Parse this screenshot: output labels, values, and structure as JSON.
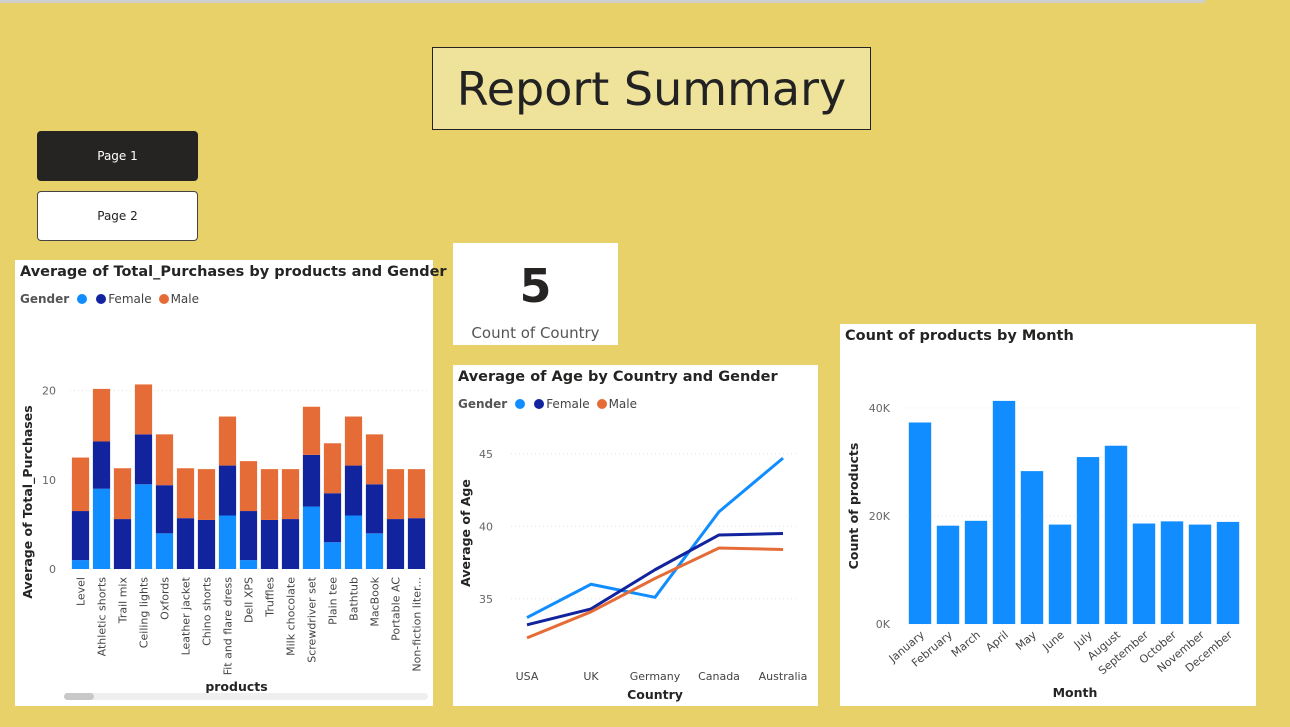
{
  "report_title": "Report Summary",
  "nav": {
    "page1": "Page 1",
    "page2": "Page 2"
  },
  "kpi": {
    "value": "5",
    "label": "Count of Country"
  },
  "colors": {
    "series_blank": "#118dff",
    "female": "#12239e",
    "male": "#e66c37",
    "bar": "#118dff"
  },
  "chart_data": [
    {
      "id": "purchases",
      "type": "bar",
      "stacked": true,
      "title": "Average of Total_Purchases by products and Gender",
      "legend_title": "Gender",
      "legend_position": "top-left",
      "xlabel": "products",
      "ylabel": "Average of Total_Purchases",
      "ylim": [
        0,
        24
      ],
      "yticks": [
        0,
        10,
        20
      ],
      "categories": [
        "Level",
        "Athletic shorts",
        "Trail mix",
        "Ceiling lights",
        "Oxfords",
        "Leather jacket",
        "Chino shorts",
        "Fit and flare dress",
        "Dell XPS",
        "Truffles",
        "Milk chocolate",
        "Screwdriver set",
        "Plain tee",
        "Bathtub",
        "MacBook",
        "Portable AC",
        "Non-fiction liter..."
      ],
      "series": [
        {
          "name": "",
          "values": [
            1.0,
            9.0,
            0,
            9.5,
            4.0,
            0,
            0,
            6.0,
            1.0,
            0,
            0,
            7.0,
            3.0,
            6.0,
            4.0,
            0,
            0
          ]
        },
        {
          "name": "Female",
          "values": [
            5.5,
            5.3,
            5.6,
            5.6,
            5.4,
            5.7,
            5.5,
            5.6,
            5.5,
            5.5,
            5.6,
            5.8,
            5.5,
            5.6,
            5.5,
            5.6,
            5.7
          ]
        },
        {
          "name": "Male",
          "values": [
            6.0,
            5.9,
            5.7,
            5.6,
            5.7,
            5.6,
            5.7,
            5.5,
            5.6,
            5.7,
            5.6,
            5.4,
            5.6,
            5.5,
            5.6,
            5.6,
            5.5
          ]
        }
      ]
    },
    {
      "id": "age",
      "type": "line",
      "title": "Average of Age by Country and Gender",
      "legend_title": "Gender",
      "legend_position": "top-left",
      "xlabel": "Country",
      "ylabel": "Average of Age",
      "ylim": [
        32.5,
        46.5
      ],
      "yticks": [
        35,
        40,
        45
      ],
      "categories": [
        "USA",
        "UK",
        "Germany",
        "Canada",
        "Australia"
      ],
      "series": [
        {
          "name": "",
          "values": [
            33.7,
            36.0,
            35.1,
            41.0,
            44.7
          ]
        },
        {
          "name": "Female",
          "values": [
            33.2,
            34.3,
            37.0,
            39.4,
            39.5
          ]
        },
        {
          "name": "Male",
          "values": [
            32.3,
            34.1,
            36.4,
            38.5,
            38.4
          ]
        }
      ]
    },
    {
      "id": "month",
      "type": "bar",
      "title": "Count of products by Month",
      "xlabel": "Month",
      "ylabel": "Count of products",
      "ylim": [
        0,
        43500
      ],
      "yticks": [
        0,
        20000,
        40000
      ],
      "ytick_labels": [
        "0K",
        "20K",
        "40K"
      ],
      "grid": true,
      "categories": [
        "January",
        "February",
        "March",
        "April",
        "May",
        "June",
        "July",
        "August",
        "September",
        "October",
        "November",
        "December"
      ],
      "values": [
        37300,
        18200,
        19100,
        41300,
        28300,
        18400,
        30900,
        33000,
        18600,
        19000,
        18400,
        18900
      ]
    }
  ]
}
